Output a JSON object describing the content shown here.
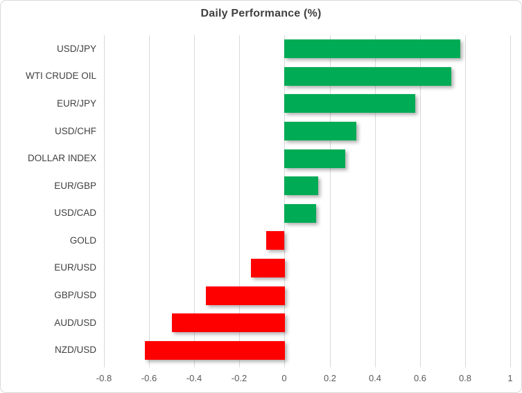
{
  "chart": {
    "title": "Daily Performance (%)"
  },
  "chart_data": {
    "type": "bar",
    "orientation": "horizontal",
    "title": "Daily Performance (%)",
    "categories": [
      "USD/JPY",
      "WTI CRUDE OIL",
      "EUR/JPY",
      "USD/CHF",
      "DOLLAR INDEX",
      "EUR/GBP",
      "USD/CAD",
      "GOLD",
      "EUR/USD",
      "GBP/USD",
      "AUD/USD",
      "NZD/USD"
    ],
    "values": [
      0.78,
      0.74,
      0.58,
      0.32,
      0.27,
      0.15,
      0.14,
      -0.08,
      -0.15,
      -0.35,
      -0.5,
      -0.62
    ],
    "xlabel": "",
    "ylabel": "",
    "xlim": [
      -0.8,
      1.0
    ],
    "xticks": [
      -0.8,
      -0.6,
      -0.4,
      -0.2,
      0,
      0.2,
      0.4,
      0.6,
      0.8,
      1
    ],
    "xtick_labels": [
      "-0.8",
      "-0.6",
      "-0.4",
      "-0.2",
      "0",
      "0.2",
      "0.4",
      "0.6",
      "0.8",
      "1"
    ],
    "grid": true,
    "legend": false,
    "colors": {
      "positive": "#00AB55",
      "negative": "#FF0000",
      "gridline": "#D9D9D9",
      "title_text": "#404040",
      "category_text": "#404040",
      "tick_text": "#595959",
      "border": "#D9D9D9"
    }
  }
}
